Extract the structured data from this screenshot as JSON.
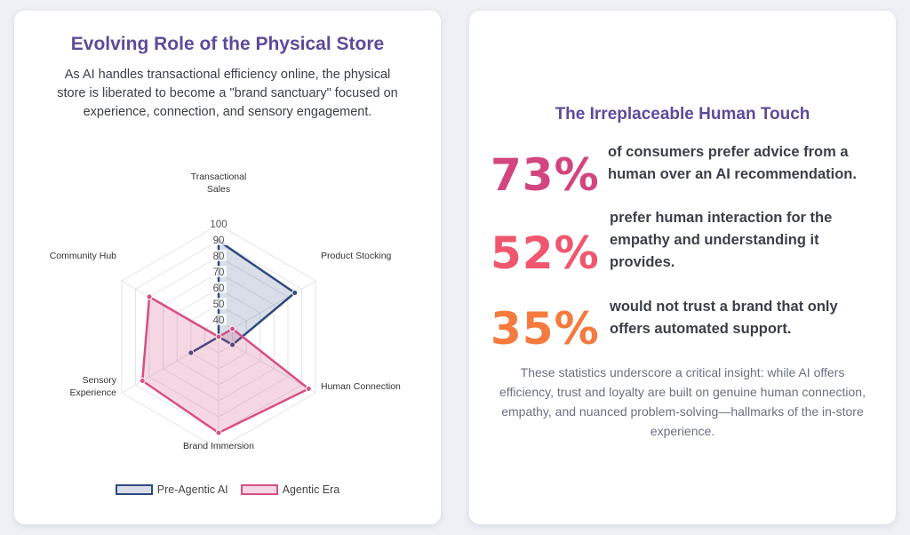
{
  "left": {
    "title": "Evolving Role of the Physical Store",
    "description": "As AI handles transactional efficiency online, the physical store is liberated to become a \"brand sanctuary\" focused on experience, connection, and sensory engagement."
  },
  "chart_data": {
    "type": "radar",
    "axes": [
      [
        "Transactional",
        "Sales"
      ],
      [
        "Product Stocking"
      ],
      [
        "Human Connection"
      ],
      [
        "Brand Immersion"
      ],
      [
        "Sensory",
        "Experience"
      ],
      [
        "Community Hub"
      ]
    ],
    "rlim": [
      30,
      100
    ],
    "ticks": [
      40,
      50,
      60,
      70,
      80,
      90,
      100
    ],
    "grid": true,
    "legend_position": "bottom",
    "series": [
      {
        "name": "Pre-Agentic AI",
        "values": [
          90,
          85,
          40,
          30,
          50,
          30
        ],
        "stroke": "#2e4a7d",
        "fill": "rgba(46,74,125,0.18)"
      },
      {
        "name": "Agentic Era",
        "values": [
          30,
          40,
          95,
          90,
          85,
          80
        ],
        "stroke": "#d64f85",
        "fill": "rgba(214,79,133,0.22)"
      }
    ]
  },
  "right": {
    "title": "The Irreplaceable Human Touch",
    "stats": [
      {
        "value": "73%",
        "text": "of consumers prefer advice from a human over an AI recommendation.",
        "color": "#d2457f"
      },
      {
        "value": "52%",
        "text": "prefer human interaction for the empathy and understanding it provides.",
        "color": "#f0566d"
      },
      {
        "value": "35%",
        "text": "would not trust a brand that only offers automated support.",
        "color": "#f57a3d"
      }
    ],
    "insight": "These statistics underscore a critical insight: while AI offers efficiency, trust and loyalty are built on genuine human connection, empathy, and nuanced problem-solving—hallmarks of the in-store experience."
  }
}
